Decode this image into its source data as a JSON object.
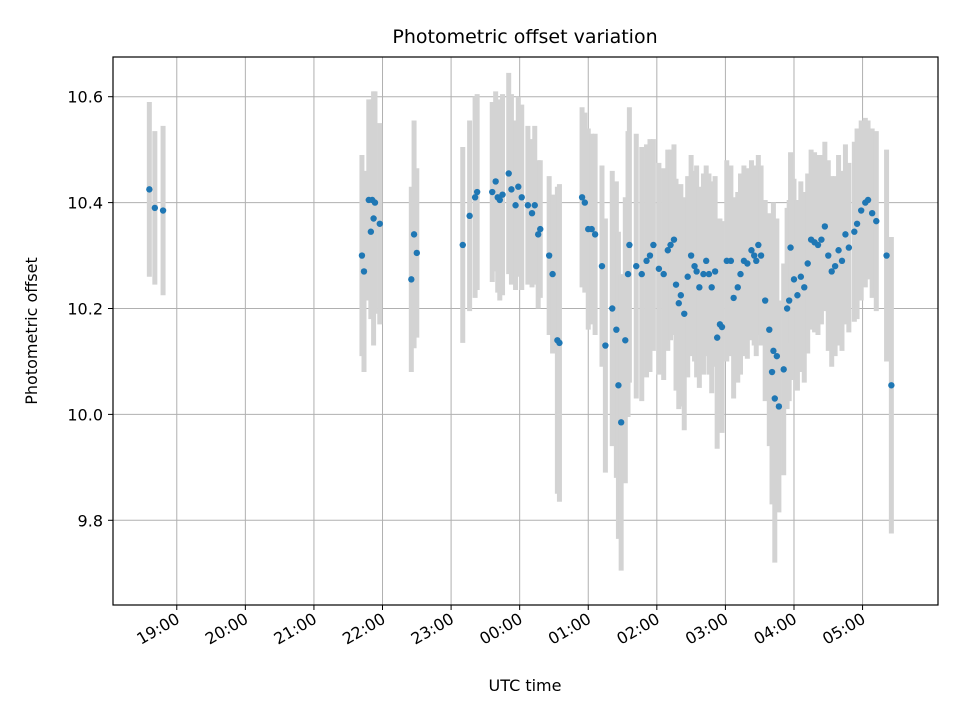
{
  "chart_data": {
    "type": "scatter",
    "title": "Photometric offset variation",
    "xlabel": "UTC time",
    "ylabel": "Photometric offset",
    "x_axis_kind": "time (hours after 19:00 UTC)",
    "x_ticks": [
      "19:00",
      "20:00",
      "21:00",
      "22:00",
      "23:00",
      "00:00",
      "01:00",
      "02:00",
      "03:00",
      "04:00",
      "05:00"
    ],
    "y_ticks": [
      "9.8",
      "10.0",
      "10.2",
      "10.4",
      "10.6"
    ],
    "xlim": [
      -0.93,
      11.1
    ],
    "ylim": [
      9.64,
      10.675
    ],
    "grid": true,
    "point_color": "#1f77b4",
    "errorbar_color": "#d3d3d3",
    "series": [
      {
        "points": [
          [
            -0.4,
            10.425,
            0.165
          ],
          [
            -0.32,
            10.39,
            0.145
          ],
          [
            -0.2,
            10.385,
            0.16
          ],
          [
            2.7,
            10.3,
            0.19
          ],
          [
            2.73,
            10.27,
            0.19
          ],
          [
            2.8,
            10.405,
            0.19
          ],
          [
            2.83,
            10.345,
            0.165
          ],
          [
            2.85,
            10.405,
            0.19
          ],
          [
            2.87,
            10.37,
            0.24
          ],
          [
            2.89,
            10.4,
            0.21
          ],
          [
            2.96,
            10.36,
            0.19
          ],
          [
            3.42,
            10.255,
            0.175
          ],
          [
            3.46,
            10.34,
            0.215
          ],
          [
            3.5,
            10.305,
            0.16
          ],
          [
            4.17,
            10.32,
            0.185
          ],
          [
            4.27,
            10.375,
            0.18
          ],
          [
            4.35,
            10.41,
            0.19
          ],
          [
            4.38,
            10.42,
            0.185
          ],
          [
            4.6,
            10.42,
            0.17
          ],
          [
            4.65,
            10.44,
            0.17
          ],
          [
            4.68,
            10.41,
            0.18
          ],
          [
            4.71,
            10.405,
            0.19
          ],
          [
            4.75,
            10.415,
            0.19
          ],
          [
            4.84,
            10.455,
            0.19
          ],
          [
            4.88,
            10.425,
            0.18
          ],
          [
            4.94,
            10.395,
            0.16
          ],
          [
            4.98,
            10.43,
            0.17
          ],
          [
            5.03,
            10.41,
            0.175
          ],
          [
            5.12,
            10.395,
            0.15
          ],
          [
            5.18,
            10.38,
            0.14
          ],
          [
            5.22,
            10.395,
            0.15
          ],
          [
            5.27,
            10.34,
            0.14
          ],
          [
            5.3,
            10.35,
            0.13
          ],
          [
            5.43,
            10.3,
            0.15
          ],
          [
            5.48,
            10.265,
            0.15
          ],
          [
            5.55,
            10.14,
            0.29
          ],
          [
            5.58,
            10.135,
            0.3
          ],
          [
            5.91,
            10.41,
            0.17
          ],
          [
            5.95,
            10.4,
            0.17
          ],
          [
            6.0,
            10.35,
            0.19
          ],
          [
            6.05,
            10.35,
            0.18
          ],
          [
            6.1,
            10.34,
            0.19
          ],
          [
            6.2,
            10.28,
            0.19
          ],
          [
            6.25,
            10.13,
            0.24
          ],
          [
            6.35,
            10.2,
            0.26
          ],
          [
            6.41,
            10.16,
            0.28
          ],
          [
            6.44,
            10.055,
            0.29
          ],
          [
            6.48,
            9.985,
            0.28
          ],
          [
            6.54,
            10.14,
            0.27
          ],
          [
            6.58,
            10.265,
            0.27
          ],
          [
            6.6,
            10.32,
            0.26
          ],
          [
            6.7,
            10.28,
            0.25
          ],
          [
            6.78,
            10.265,
            0.24
          ],
          [
            6.85,
            10.29,
            0.22
          ],
          [
            6.9,
            10.3,
            0.22
          ],
          [
            6.95,
            10.32,
            0.2
          ],
          [
            7.03,
            10.275,
            0.2
          ],
          [
            7.1,
            10.265,
            0.2
          ],
          [
            7.16,
            10.31,
            0.19
          ],
          [
            7.2,
            10.32,
            0.18
          ],
          [
            7.25,
            10.33,
            0.18
          ],
          [
            7.28,
            10.245,
            0.2
          ],
          [
            7.32,
            10.21,
            0.2
          ],
          [
            7.35,
            10.225,
            0.21
          ],
          [
            7.4,
            10.19,
            0.22
          ],
          [
            7.45,
            10.26,
            0.19
          ],
          [
            7.5,
            10.3,
            0.19
          ],
          [
            7.55,
            10.28,
            0.18
          ],
          [
            7.58,
            10.27,
            0.2
          ],
          [
            7.62,
            10.24,
            0.19
          ],
          [
            7.68,
            10.265,
            0.19
          ],
          [
            7.72,
            10.29,
            0.18
          ],
          [
            7.76,
            10.265,
            0.19
          ],
          [
            7.8,
            10.24,
            0.2
          ],
          [
            7.85,
            10.27,
            0.18
          ],
          [
            7.88,
            10.145,
            0.21
          ],
          [
            7.92,
            10.17,
            0.2
          ],
          [
            7.95,
            10.165,
            0.2
          ],
          [
            8.02,
            10.29,
            0.19
          ],
          [
            8.08,
            10.29,
            0.18
          ],
          [
            8.12,
            10.22,
            0.19
          ],
          [
            8.18,
            10.24,
            0.18
          ],
          [
            8.22,
            10.265,
            0.19
          ],
          [
            8.27,
            10.29,
            0.18
          ],
          [
            8.32,
            10.285,
            0.18
          ],
          [
            8.38,
            10.31,
            0.17
          ],
          [
            8.42,
            10.3,
            0.17
          ],
          [
            8.45,
            10.29,
            0.18
          ],
          [
            8.48,
            10.32,
            0.17
          ],
          [
            8.52,
            10.3,
            0.17
          ],
          [
            8.58,
            10.215,
            0.19
          ],
          [
            8.64,
            10.16,
            0.22
          ],
          [
            8.68,
            10.08,
            0.25
          ],
          [
            8.7,
            10.12,
            0.28
          ],
          [
            8.72,
            10.03,
            0.31
          ],
          [
            8.75,
            10.11,
            0.26
          ],
          [
            8.78,
            10.015,
            0.2
          ],
          [
            8.85,
            10.085,
            0.2
          ],
          [
            8.9,
            10.2,
            0.19
          ],
          [
            8.93,
            10.215,
            0.19
          ],
          [
            8.95,
            10.315,
            0.18
          ],
          [
            9.0,
            10.255,
            0.19
          ],
          [
            9.05,
            10.225,
            0.18
          ],
          [
            9.1,
            10.26,
            0.18
          ],
          [
            9.15,
            10.24,
            0.18
          ],
          [
            9.2,
            10.285,
            0.17
          ],
          [
            9.25,
            10.33,
            0.17
          ],
          [
            9.3,
            10.325,
            0.17
          ],
          [
            9.35,
            10.32,
            0.17
          ],
          [
            9.4,
            10.33,
            0.16
          ],
          [
            9.45,
            10.355,
            0.16
          ],
          [
            9.5,
            10.3,
            0.18
          ],
          [
            9.55,
            10.27,
            0.18
          ],
          [
            9.6,
            10.28,
            0.17
          ],
          [
            9.65,
            10.31,
            0.18
          ],
          [
            9.7,
            10.29,
            0.17
          ],
          [
            9.75,
            10.34,
            0.17
          ],
          [
            9.8,
            10.315,
            0.16
          ],
          [
            9.88,
            10.345,
            0.17
          ],
          [
            9.92,
            10.36,
            0.18
          ],
          [
            9.98,
            10.385,
            0.17
          ],
          [
            10.04,
            10.4,
            0.16
          ],
          [
            10.08,
            10.405,
            0.15
          ],
          [
            10.14,
            10.38,
            0.16
          ],
          [
            10.2,
            10.365,
            0.17
          ],
          [
            10.35,
            10.3,
            0.2
          ],
          [
            10.42,
            10.055,
            0.28
          ]
        ]
      }
    ]
  }
}
